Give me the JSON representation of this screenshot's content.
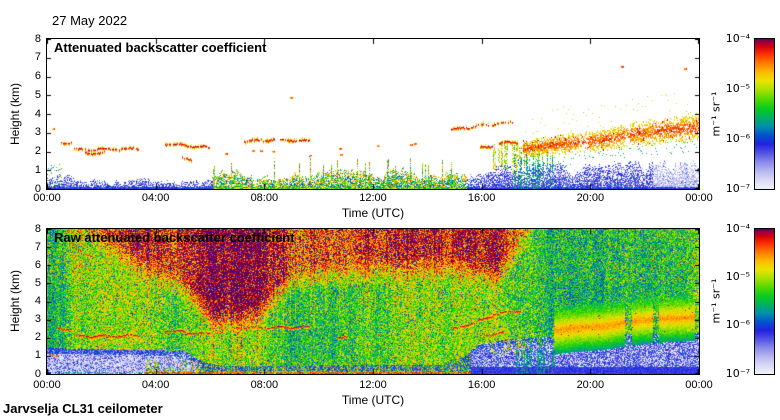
{
  "page": {
    "date_label": "27 May 2022",
    "footer_label": "Jarvselja CL31 ceilometer",
    "background": "#ffffff"
  },
  "axes": {
    "xlabel": "Time (UTC)",
    "ylabel": "Height (km)",
    "x_tick_labels": [
      "00:00",
      "04:00",
      "08:00",
      "12:00",
      "16:00",
      "20:00",
      "00:00"
    ],
    "y_tick_labels": [
      "0",
      "1",
      "2",
      "3",
      "4",
      "5",
      "6",
      "7",
      "8"
    ],
    "xlim_hours": [
      0,
      24
    ],
    "ylim_km": [
      0,
      8
    ]
  },
  "colorbar": {
    "tick_labels": [
      "10⁻⁴",
      "10⁻⁵",
      "10⁻⁶",
      "10⁻⁷"
    ],
    "unit_label": "m⁻¹ sr⁻¹"
  },
  "colormap": {
    "vmin_log10": -7,
    "vmax_log10": -4,
    "stops": [
      [
        0.0,
        "#f2f2fb"
      ],
      [
        0.06,
        "#d9d9f6"
      ],
      [
        0.12,
        "#b6b6f1"
      ],
      [
        0.18,
        "#8a8aeb"
      ],
      [
        0.24,
        "#5252e5"
      ],
      [
        0.3,
        "#2222dd"
      ],
      [
        0.36,
        "#0055cc"
      ],
      [
        0.42,
        "#0092a8"
      ],
      [
        0.48,
        "#00b25c"
      ],
      [
        0.54,
        "#0ccc1e"
      ],
      [
        0.6,
        "#55d800"
      ],
      [
        0.66,
        "#a8e000"
      ],
      [
        0.72,
        "#e9e400"
      ],
      [
        0.78,
        "#ffb900"
      ],
      [
        0.84,
        "#ff7a00"
      ],
      [
        0.9,
        "#ff3000"
      ],
      [
        0.95,
        "#d00010"
      ],
      [
        0.98,
        "#99003c"
      ],
      [
        1.0,
        "#5e0060"
      ]
    ]
  },
  "chart_data": [
    {
      "type": "heatmap",
      "panel": "processed",
      "title": "Attenuated backscatter coefficient",
      "xlabel": "Time (UTC)",
      "ylabel": "Height (km)",
      "x_tick_labels": [
        "00:00",
        "04:00",
        "08:00",
        "12:00",
        "16:00",
        "20:00",
        "00:00"
      ],
      "y_tick_labels": [
        "0",
        "1",
        "2",
        "3",
        "4",
        "5",
        "6",
        "7",
        "8"
      ],
      "xlim_hours": [
        0,
        24
      ],
      "ylim_km": [
        0,
        8
      ],
      "value_scale": "log10 attenuated backscatter, m⁻¹ sr⁻¹, range 1e-7 to 1e-4",
      "seed": 12345,
      "features": {
        "surface_band": {
          "zones": [
            [
              0,
              6.1,
              "blue"
            ],
            [
              6.1,
              15.45,
              "mixed"
            ],
            [
              15.45,
              24.01,
              "blue"
            ]
          ],
          "light_after_hour": 22.3,
          "top_km": [
            [
              0,
              0.55
            ],
            [
              3,
              0.5
            ],
            [
              4.5,
              0.4
            ],
            [
              5.6,
              0.35
            ],
            [
              6.2,
              0.7
            ],
            [
              7,
              0.8
            ],
            [
              9,
              0.75
            ],
            [
              12,
              0.8
            ],
            [
              14,
              0.9
            ],
            [
              15.2,
              1.05
            ],
            [
              16,
              0.9
            ],
            [
              17,
              1.0
            ],
            [
              19,
              1.05
            ],
            [
              21,
              1.1
            ],
            [
              24,
              1.15
            ]
          ]
        },
        "left_cluster": {
          "t0": 0,
          "t1": 0.55,
          "km_top": 1.3
        },
        "cloud_streaks": [
          [
            0.35,
            0.9,
            2.55,
            2.45
          ],
          [
            1.0,
            3.35,
            2.1,
            2.15
          ],
          [
            1.35,
            2.1,
            1.93,
            1.9
          ],
          [
            4.35,
            5.95,
            2.42,
            2.2
          ],
          [
            4.95,
            5.3,
            1.63,
            1.6
          ],
          [
            7.25,
            8.35,
            2.55,
            2.63
          ],
          [
            8.55,
            9.65,
            2.62,
            2.55
          ],
          [
            14.85,
            16.15,
            3.15,
            3.45
          ],
          [
            16.25,
            17.1,
            3.45,
            3.55
          ],
          [
            15.95,
            16.5,
            2.2,
            2.3
          ],
          [
            16.6,
            17.3,
            2.45,
            2.5
          ]
        ],
        "cloud_dots": [
          [
            0.25,
            3.2
          ],
          [
            6.6,
            1.85
          ],
          [
            7.6,
            2.0
          ],
          [
            7.9,
            2.0
          ],
          [
            8.35,
            1.95
          ],
          [
            9.0,
            4.85
          ],
          [
            9.7,
            1.75
          ],
          [
            10.8,
            2.1
          ],
          [
            10.85,
            1.78
          ],
          [
            12.2,
            2.25
          ],
          [
            13.4,
            2.3
          ],
          [
            13.55,
            2.35
          ],
          [
            21.2,
            6.5
          ],
          [
            23.5,
            6.4
          ]
        ],
        "orange_streaks": {
          "t0": 16.4,
          "t1": 17.6,
          "km_top": 2.6,
          "km_bot": 0.8
        },
        "green_columns": {
          "t0": 17.15,
          "t1": 18.65,
          "top_min": 1.6,
          "top_max": 2.7
        },
        "plume": {
          "t0": 17.5,
          "t1": 24,
          "center_km": [
            [
              17.5,
              2.15
            ],
            [
              18.5,
              2.35
            ],
            [
              19.5,
              2.5
            ],
            [
              20.5,
              2.65
            ],
            [
              21.5,
              2.9
            ],
            [
              22.5,
              3.1
            ],
            [
              23.5,
              3.25
            ],
            [
              24,
              3.3
            ]
          ],
          "gaps": [
            [
              19.55,
              19.95
            ],
            [
              21.25,
              21.45
            ]
          ]
        }
      }
    },
    {
      "type": "heatmap",
      "panel": "raw",
      "title": "Raw attenuated backscatter coefficient",
      "xlabel": "Time (UTC)",
      "ylabel": "Height (km)",
      "x_tick_labels": [
        "00:00",
        "04:00",
        "08:00",
        "12:00",
        "16:00",
        "20:00",
        "00:00"
      ],
      "y_tick_labels": [
        "0",
        "1",
        "2",
        "3",
        "4",
        "5",
        "6",
        "7",
        "8"
      ],
      "xlim_hours": [
        0,
        24
      ],
      "ylim_km": [
        0,
        8
      ],
      "value_scale": "log10 attenuated backscatter, m⁻¹ sr⁻¹, range 1e-7 to 1e-4",
      "seed": 987,
      "features": {
        "low_band_top_km": [
          [
            0,
            1.4
          ],
          [
            5,
            1.25
          ],
          [
            5.8,
            0.6
          ],
          [
            6.5,
            0.4
          ],
          [
            15,
            0.5
          ],
          [
            15.9,
            1.6
          ],
          [
            17,
            1.9
          ],
          [
            20,
            2.1
          ],
          [
            24,
            2.25
          ]
        ],
        "red_zone": {
          "bottom_km": [
            [
              0,
              8.6
            ],
            [
              1.5,
              7.0
            ],
            [
              3,
              5.5
            ],
            [
              5,
              3.8
            ],
            [
              6.2,
              2.0
            ],
            [
              7.6,
              2.2
            ],
            [
              8.8,
              4.0
            ],
            [
              9.5,
              4.4
            ],
            [
              12,
              4.8
            ],
            [
              15,
              5.0
            ],
            [
              16.6,
              4.5
            ],
            [
              17.6,
              6.5
            ],
            [
              18.3,
              8.8
            ],
            [
              24,
              8.8
            ]
          ],
          "amp": [
            [
              0,
              0.3
            ],
            [
              1.5,
              0.85
            ],
            [
              3,
              1.1
            ],
            [
              5,
              1.35
            ],
            [
              6.2,
              1.55
            ],
            [
              8.3,
              1.5
            ],
            [
              9.5,
              1.3
            ],
            [
              15,
              1.25
            ],
            [
              16.6,
              1.35
            ],
            [
              17.6,
              0.9
            ],
            [
              18.3,
              0.25
            ],
            [
              24,
              0.15
            ]
          ]
        },
        "surface_line": {
          "t0": 3.6,
          "t1": 15.6
        },
        "cloud_streaks": [
          [
            0.35,
            0.9,
            2.5,
            2.45
          ],
          [
            1.0,
            3.35,
            2.07,
            2.12
          ],
          [
            4.35,
            5.95,
            2.4,
            2.2
          ],
          [
            7.25,
            9.65,
            2.55,
            2.6
          ],
          [
            10.7,
            11.05,
            2.05,
            2.1
          ],
          [
            14.9,
            16.4,
            2.45,
            3.2
          ],
          [
            16.4,
            17.4,
            3.3,
            3.5
          ],
          [
            15.9,
            16.8,
            2.1,
            2.3
          ]
        ],
        "cloud_dots": [
          [
            0.15,
            1.0
          ],
          [
            0.35,
            0.95
          ],
          [
            12.2,
            2.2
          ],
          [
            13.45,
            2.3
          ]
        ],
        "orange_streaks": {
          "t0": 16.3,
          "t1": 17.7,
          "km_top": 2.8,
          "km_bot": 0.9
        },
        "green_columns": {
          "t0": 17.25,
          "t1": 18.7,
          "top_min": 1.8,
          "top_max": 2.8
        },
        "plume": {
          "t0": 18.65,
          "t1": 23.85,
          "center_km": [
            [
              18.65,
              2.35
            ],
            [
              19.5,
              2.5
            ],
            [
              20.5,
              2.6
            ],
            [
              21.5,
              2.85
            ],
            [
              22.5,
              3.0
            ],
            [
              23.85,
              3.1
            ]
          ],
          "gaps": [
            [
              21.25,
              21.5
            ],
            [
              22.3,
              22.5
            ]
          ]
        }
      }
    }
  ]
}
